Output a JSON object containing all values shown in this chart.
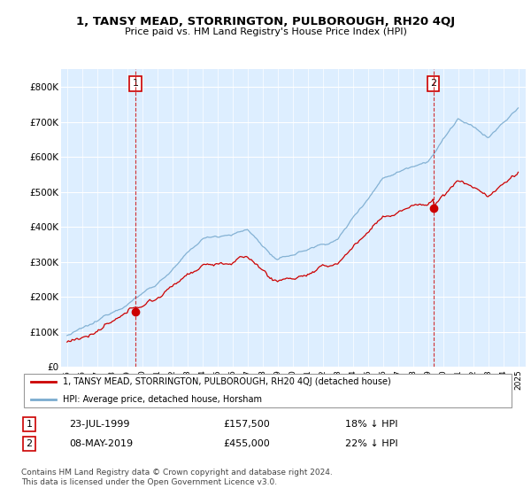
{
  "title": "1, TANSY MEAD, STORRINGTON, PULBOROUGH, RH20 4QJ",
  "subtitle": "Price paid vs. HM Land Registry's House Price Index (HPI)",
  "ylabel_ticks": [
    "£0",
    "£100K",
    "£200K",
    "£300K",
    "£400K",
    "£500K",
    "£600K",
    "£700K",
    "£800K"
  ],
  "ytick_values": [
    0,
    100000,
    200000,
    300000,
    400000,
    500000,
    600000,
    700000,
    800000
  ],
  "ylim": [
    0,
    850000
  ],
  "sale1_date_year": 1999.55,
  "sale1_price": 157500,
  "sale2_date_year": 2019.35,
  "sale2_price": 455000,
  "red_color": "#cc0000",
  "blue_color": "#7aabcf",
  "legend_label_red": "1, TANSY MEAD, STORRINGTON, PULBOROUGH, RH20 4QJ (detached house)",
  "legend_label_blue": "HPI: Average price, detached house, Horsham",
  "annotation1_label": "1",
  "annotation2_label": "2",
  "table_row1": [
    "1",
    "23-JUL-1999",
    "£157,500",
    "18% ↓ HPI"
  ],
  "table_row2": [
    "2",
    "08-MAY-2019",
    "£455,000",
    "22% ↓ HPI"
  ],
  "footnote": "Contains HM Land Registry data © Crown copyright and database right 2024.\nThis data is licensed under the Open Government Licence v3.0.",
  "background_color": "#ffffff",
  "grid_color": "#cccccc",
  "chart_bg": "#ddeeff"
}
